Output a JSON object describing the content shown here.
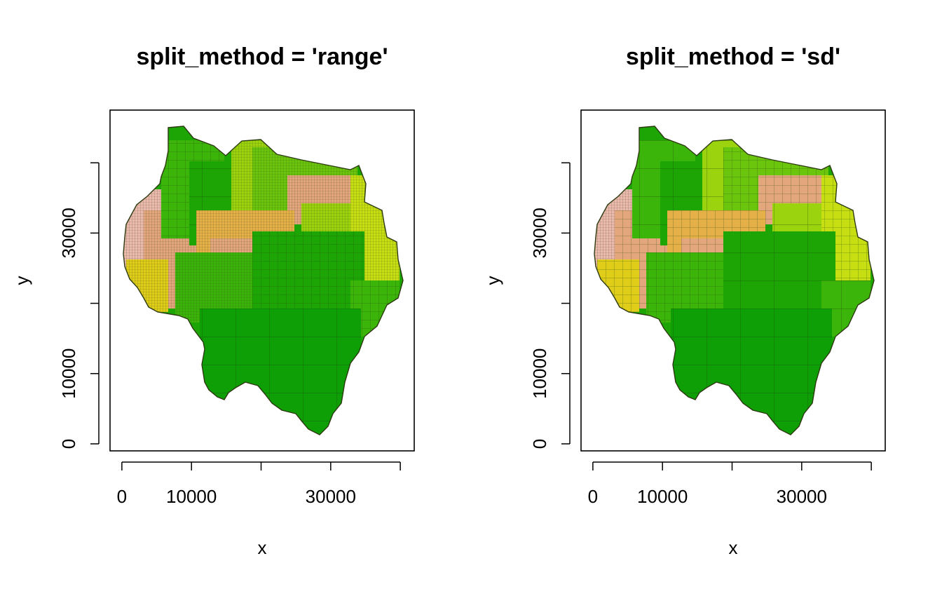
{
  "chart_data": [
    {
      "type": "heatmap",
      "title": "split_method = 'range'",
      "xlabel": "x",
      "ylabel": "y",
      "xlim": [
        -1700,
        42000
      ],
      "ylim": [
        -1000,
        47500
      ],
      "x_ticks": [
        0,
        10000,
        20000,
        30000,
        40000
      ],
      "x_tick_labels": [
        "0",
        "10000",
        "",
        "30000",
        ""
      ],
      "y_ticks": [
        0,
        10000,
        20000,
        30000,
        40000
      ],
      "y_tick_labels": [
        "0",
        "10000",
        "",
        "30000",
        ""
      ],
      "grid": false,
      "palette": [
        "#ecb9ad",
        "#e4a67c",
        "#e5b047",
        "#e0cd1a",
        "#c7de13",
        "#9bd40e",
        "#6ac50c",
        "#3cb50a",
        "#1ca504",
        "#0e9e06"
      ]
    },
    {
      "type": "heatmap",
      "title": "split_method = 'sd'",
      "xlabel": "x",
      "ylabel": "y",
      "xlim": [
        -1700,
        42000
      ],
      "ylim": [
        -1000,
        47500
      ],
      "x_ticks": [
        0,
        10000,
        20000,
        30000,
        40000
      ],
      "x_tick_labels": [
        "0",
        "10000",
        "",
        "30000",
        ""
      ],
      "y_ticks": [
        0,
        10000,
        20000,
        30000,
        40000
      ],
      "y_tick_labels": [
        "0",
        "10000",
        "",
        "30000",
        ""
      ],
      "grid": false,
      "palette": [
        "#ecb9ad",
        "#e4a67c",
        "#e5b047",
        "#e0cd1a",
        "#c7de13",
        "#9bd40e",
        "#6ac50c",
        "#3cb50a",
        "#1ca504",
        "#0e9e06"
      ]
    }
  ]
}
